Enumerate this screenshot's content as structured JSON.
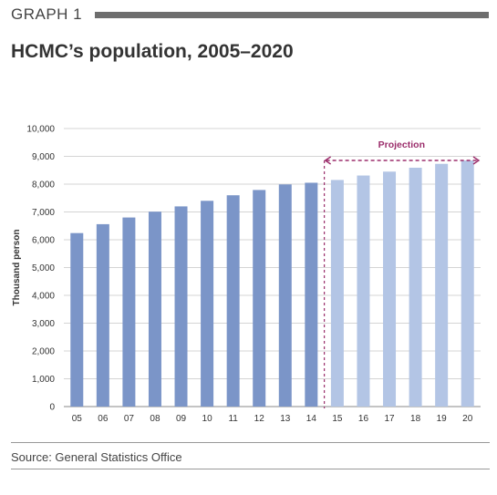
{
  "header": {
    "graph_label": "GRAPH 1",
    "title": "HCMC’s population, 2005–2020"
  },
  "source": "Source: General Statistics Office",
  "colors": {
    "actual": "#7b95c8",
    "projection": "#b3c5e5",
    "projection_marker": "#9b2d6b",
    "header_bar": "#6e6e6e"
  },
  "chart_data": {
    "type": "bar",
    "categories": [
      "05",
      "06",
      "07",
      "08",
      "09",
      "10",
      "11",
      "12",
      "13",
      "14",
      "15",
      "16",
      "17",
      "18",
      "19",
      "20"
    ],
    "values": [
      6240,
      6560,
      6800,
      7010,
      7200,
      7400,
      7600,
      7790,
      7990,
      8050,
      8150,
      8310,
      8450,
      8590,
      8730,
      8850
    ],
    "projection_from_index": 10,
    "annotation": "Projection",
    "ylabel": "Thousand person",
    "xlabel": "",
    "title": "",
    "ylim": [
      0,
      10000
    ],
    "yticks": [
      "0",
      "1,000",
      "2,000",
      "3,000",
      "4,000",
      "5,000",
      "6,000",
      "7,000",
      "8,000",
      "9,000",
      "10,000"
    ],
    "grid": "horizontal",
    "legend": "none"
  }
}
